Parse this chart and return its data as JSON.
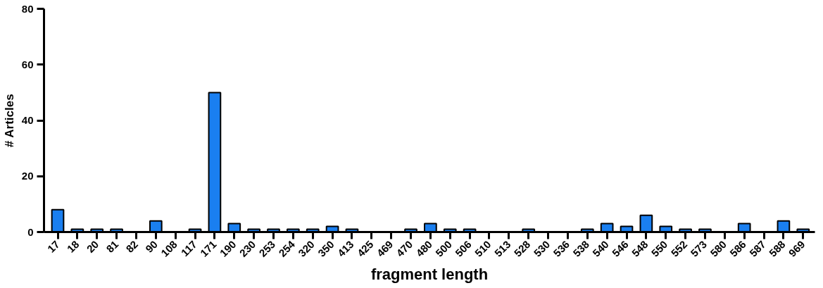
{
  "chart_data": {
    "type": "bar",
    "xlabel": "fragment length",
    "ylabel": "# Articles",
    "categories": [
      "17",
      "18",
      "20",
      "81",
      "82",
      "90",
      "108",
      "117",
      "171",
      "190",
      "230",
      "253",
      "254",
      "320",
      "350",
      "413",
      "425",
      "469",
      "470",
      "480",
      "500",
      "506",
      "510",
      "513",
      "528",
      "530",
      "536",
      "538",
      "540",
      "546",
      "548",
      "550",
      "552",
      "573",
      "580",
      "586",
      "587",
      "588",
      "969"
    ],
    "values": [
      8,
      1,
      1,
      1,
      0,
      4,
      0,
      1,
      50,
      3,
      1,
      1,
      1,
      1,
      2,
      1,
      0,
      0,
      1,
      3,
      1,
      1,
      0,
      0,
      1,
      0,
      0,
      1,
      3,
      2,
      6,
      2,
      1,
      1,
      0,
      3,
      0,
      4,
      1
    ],
    "color": "#1a7ff0",
    "ylim": [
      0,
      80
    ],
    "yticks": [
      0,
      20,
      40,
      60,
      80
    ],
    "grid": false
  }
}
